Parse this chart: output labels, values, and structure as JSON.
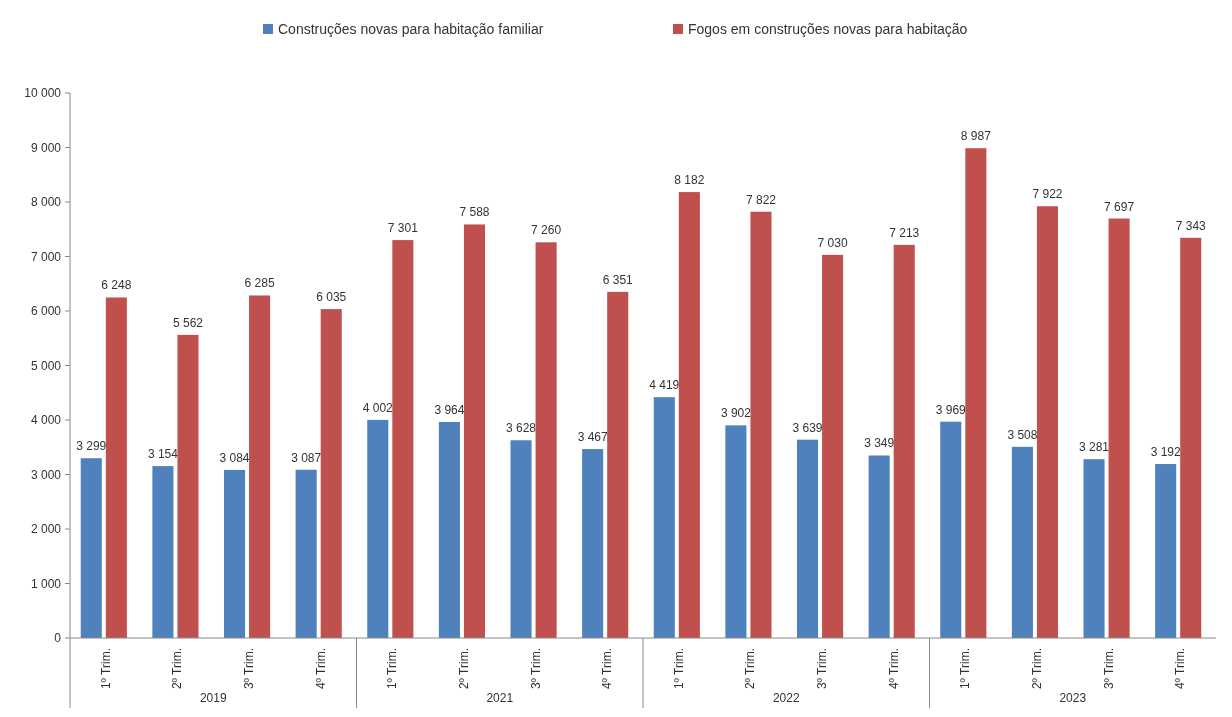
{
  "chart_data": {
    "type": "bar",
    "categories": [
      "1º Trim.",
      "2º Trim.",
      "3º Trim.",
      "4º Trim.",
      "1º Trim.",
      "2º Trim.",
      "3º Trim.",
      "4º Trim.",
      "1º Trim.",
      "2º Trim.",
      "3º Trim.",
      "4º Trim.",
      "1º Trim.",
      "2º Trim.",
      "3º Trim.",
      "4º Trim."
    ],
    "series": [
      {
        "name": "Construções novas para habitação familiar",
        "color": "#4f81bd",
        "values": [
          3299,
          3154,
          3084,
          3087,
          4002,
          3964,
          3628,
          3467,
          4419,
          3902,
          3639,
          3349,
          3969,
          3508,
          3281,
          3192
        ],
        "value_labels": [
          "3 299",
          "3 154",
          "3 084",
          "3 087",
          "4 002",
          "3 964",
          "3 628",
          "3 467",
          "4 419",
          "3 902",
          "3 639",
          "3 349",
          "3 969",
          "3 508",
          "3 281",
          "3 192"
        ]
      },
      {
        "name": "Fogos em construções novas para habitação",
        "color": "#c0504d",
        "values": [
          6248,
          5562,
          6285,
          6035,
          7301,
          7588,
          7260,
          6351,
          8182,
          7822,
          7030,
          7213,
          8987,
          7922,
          7697,
          7343
        ],
        "value_labels": [
          "6 248",
          "5 562",
          "6 285",
          "6 035",
          "7 301",
          "7 588",
          "7 260",
          "6 351",
          "8 182",
          "7 822",
          "7 030",
          "7 213",
          "8 987",
          "7 922",
          "7 697",
          "7 343"
        ]
      }
    ],
    "ylim": [
      0,
      10000
    ],
    "yticks": [
      0,
      {
        "value": 1000,
        "label": "1 000"
      },
      {
        "value": 2000,
        "label": "2 000"
      },
      {
        "value": 3000,
        "label": "3 000"
      },
      {
        "value": 4000,
        "label": "4 000"
      },
      {
        "value": 5000,
        "label": "5 000"
      },
      {
        "value": 6000,
        "label": "6 000"
      },
      {
        "value": 7000,
        "label": "7 000"
      },
      {
        "value": 8000,
        "label": "8 000"
      },
      {
        "value": 9000,
        "label": "9 000"
      },
      {
        "value": 10000,
        "label": "10 000"
      }
    ],
    "annotations": [
      "2019",
      "2021",
      "2022",
      "2023"
    ],
    "legend": "top",
    "grid": false
  }
}
